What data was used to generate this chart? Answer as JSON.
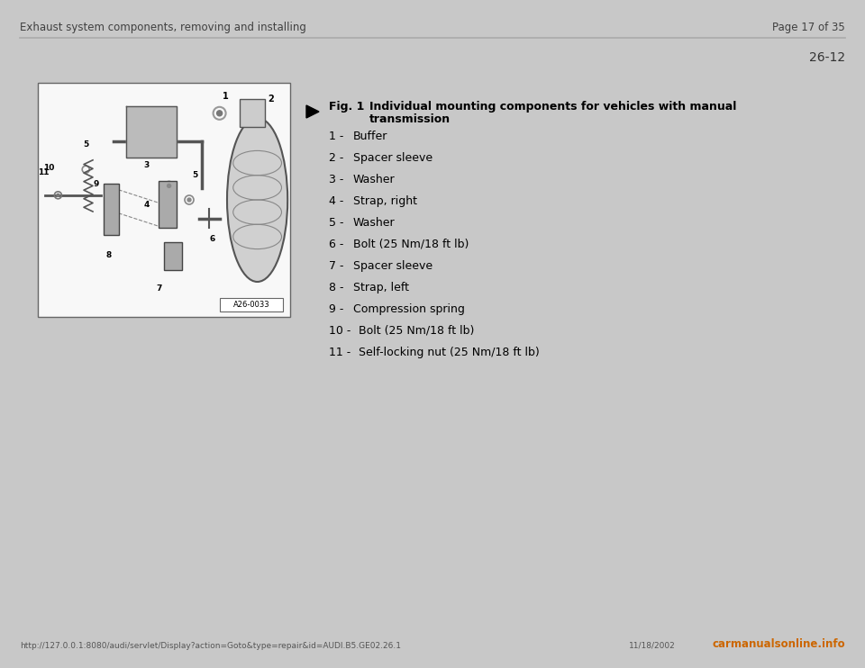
{
  "page_bg": "#ffffff",
  "outer_bg": "#c8c8c8",
  "header_left": "Exhaust system components, removing and installing",
  "header_right": "Page 17 of 35",
  "section_number": "26-12",
  "fig_label": "Fig. 1",
  "fig_title_line1": "Individual mounting components for vehicles with manual",
  "fig_title_line2": "transmission",
  "items": [
    {
      "num": "1",
      "text": "Buffer"
    },
    {
      "num": "2",
      "text": "Spacer sleeve"
    },
    {
      "num": "3",
      "text": "Washer"
    },
    {
      "num": "4",
      "text": "Strap, right"
    },
    {
      "num": "5",
      "text": "Washer"
    },
    {
      "num": "6",
      "text": "Bolt (25 Nm/18 ft lb)"
    },
    {
      "num": "7",
      "text": "Spacer sleeve"
    },
    {
      "num": "8",
      "text": "Strap, left"
    },
    {
      "num": "9",
      "text": "Compression spring"
    },
    {
      "num": "10",
      "text": "Bolt (25 Nm/18 ft lb)"
    },
    {
      "num": "11",
      "text": "Self-locking nut (25 Nm/18 ft lb)"
    }
  ],
  "footer_url": "http://127.0.0.1:8080/audi/servlet/Display?action=Goto&type=repair&id=AUDI.B5.GE02.26.1",
  "footer_date": "11/18/2002",
  "footer_logo": "carmanualsonline.info",
  "img_caption": "A26-0033",
  "header_fontsize": 8.5,
  "section_fontsize": 10,
  "fig_title_fontsize": 9,
  "item_fontsize": 9,
  "footer_fontsize": 6.5
}
